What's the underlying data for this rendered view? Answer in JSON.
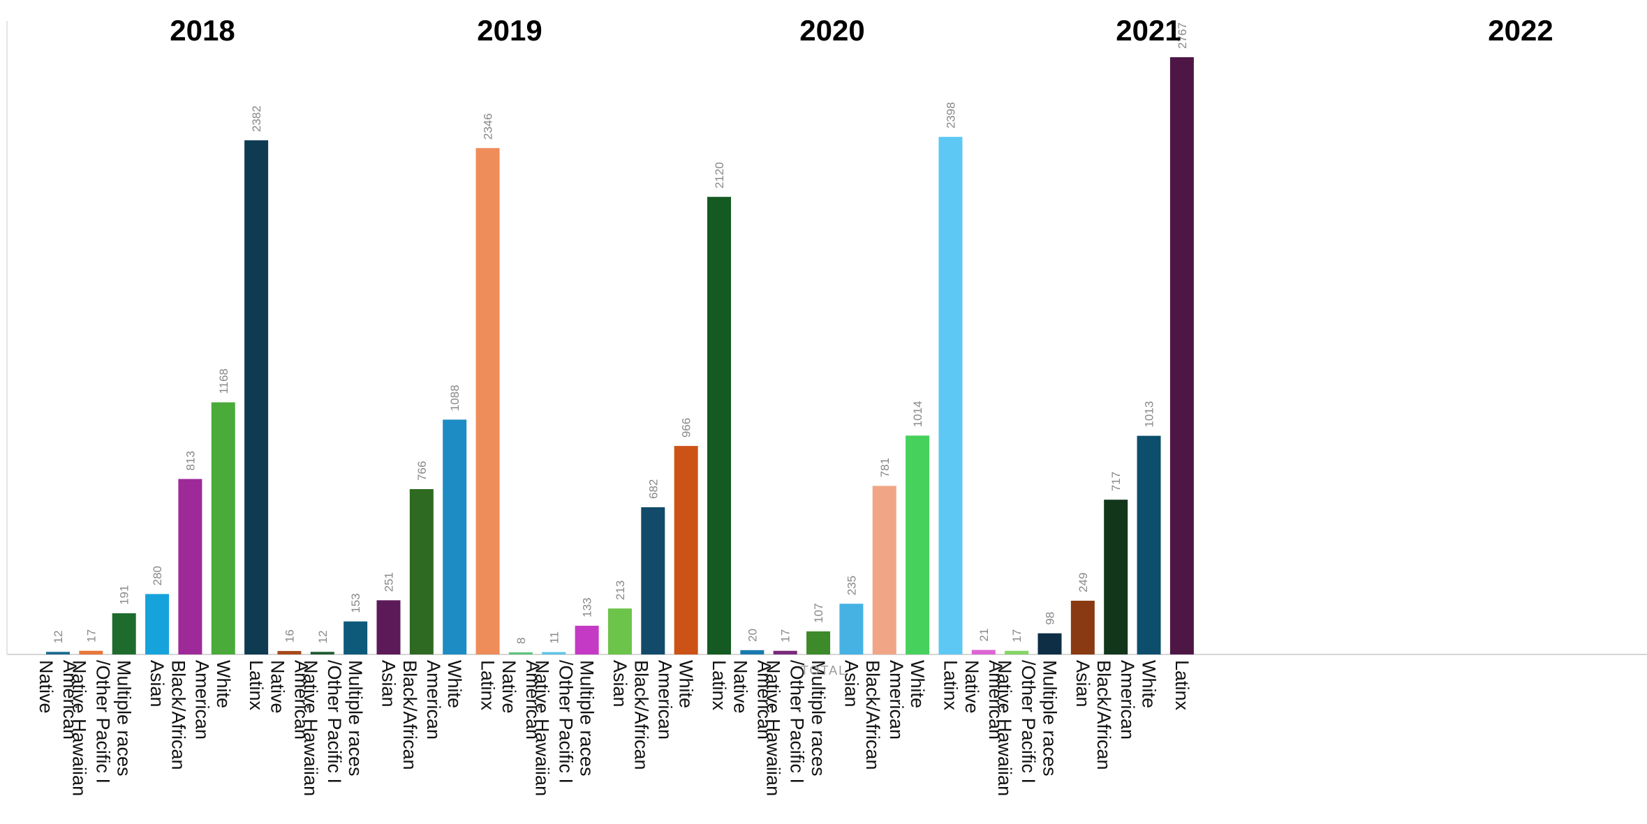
{
  "chart_data": {
    "type": "bar",
    "groups": [
      {
        "year": "2018",
        "bars": [
          {
            "label": [
              "Native",
              "American"
            ],
            "value": 12,
            "color": "#1b6b8f"
          },
          {
            "label": [
              "Native Hawaiian",
              "/Other Pacific I"
            ],
            "value": 17,
            "color": "#e8763a"
          },
          {
            "label": [
              "Multiple races"
            ],
            "value": 191,
            "color": "#1e6b2e"
          },
          {
            "label": [
              "Asian"
            ],
            "value": 280,
            "color": "#16a3dc"
          },
          {
            "label": [
              "Black/African",
              "American"
            ],
            "value": 813,
            "color": "#9e2a9a"
          },
          {
            "label": [
              "White"
            ],
            "value": 1168,
            "color": "#4aaa3a"
          },
          {
            "label": [
              "Latinx"
            ],
            "value": 2382,
            "color": "#0e3a52"
          }
        ]
      },
      {
        "year": "2019",
        "bars": [
          {
            "label": [
              "Native",
              "American"
            ],
            "value": 16,
            "color": "#a64a1a"
          },
          {
            "label": [
              "Native Hawaiian",
              "/Other Pacific I"
            ],
            "value": 12,
            "color": "#1e5a2e"
          },
          {
            "label": [
              "Multiple races"
            ],
            "value": 153,
            "color": "#0e5a7a"
          },
          {
            "label": [
              "Asian"
            ],
            "value": 251,
            "color": "#5c1a58"
          },
          {
            "label": [
              "Black/African",
              "American"
            ],
            "value": 766,
            "color": "#2e6a22"
          },
          {
            "label": [
              "White"
            ],
            "value": 1088,
            "color": "#1e8cc4"
          },
          {
            "label": [
              "Latinx"
            ],
            "value": 2346,
            "color": "#ee8c5a"
          }
        ]
      },
      {
        "year": "2020",
        "bars": [
          {
            "label": [
              "Native",
              "American"
            ],
            "value": 8,
            "color": "#5cc47a"
          },
          {
            "label": [
              "Native Hawaiian",
              "/Other Pacific I"
            ],
            "value": 11,
            "color": "#5ec4ea"
          },
          {
            "label": [
              "Multiple races"
            ],
            "value": 133,
            "color": "#c43ac4"
          },
          {
            "label": [
              "Asian"
            ],
            "value": 213,
            "color": "#6cc44a"
          },
          {
            "label": [
              "Black/African",
              "American"
            ],
            "value": 682,
            "color": "#124a6a"
          },
          {
            "label": [
              "White"
            ],
            "value": 966,
            "color": "#cc5216"
          },
          {
            "label": [
              "Latinx"
            ],
            "value": 2120,
            "color": "#145a22"
          }
        ]
      },
      {
        "year": "2021",
        "bars": [
          {
            "label": [
              "Native",
              "American"
            ],
            "value": 20,
            "color": "#1a7ab0"
          },
          {
            "label": [
              "Native Hawaiian",
              "/Other Pacific I"
            ],
            "value": 17,
            "color": "#7a2a7a"
          },
          {
            "label": [
              "Multiple races"
            ],
            "value": 107,
            "color": "#3c8a2a"
          },
          {
            "label": [
              "Asian"
            ],
            "value": 235,
            "color": "#46b2e4"
          },
          {
            "label": [
              "Black/African",
              "American"
            ],
            "value": 781,
            "color": "#f0a686"
          },
          {
            "label": [
              "White"
            ],
            "value": 1014,
            "color": "#46d05c"
          },
          {
            "label": [
              "Latinx"
            ],
            "value": 2398,
            "color": "#5ec8f4"
          }
        ]
      },
      {
        "year": "2022",
        "bars": [
          {
            "label": [
              "Native",
              "American"
            ],
            "value": 21,
            "color": "#dc66d4"
          },
          {
            "label": [
              "Native Hawaiian",
              "/Other Pacific I"
            ],
            "value": 17,
            "color": "#86d466"
          },
          {
            "label": [
              "Multiple races"
            ],
            "value": 98,
            "color": "#0e2e46"
          },
          {
            "label": [
              "Asian"
            ],
            "value": 249,
            "color": "#8a3a12"
          },
          {
            "label": [
              "Black/African",
              "American"
            ],
            "value": 717,
            "color": "#12361a"
          },
          {
            "label": [
              "White"
            ],
            "value": 1013,
            "color": "#0c4e6c"
          },
          {
            "label": [
              "Latinx"
            ],
            "value": 2767,
            "color": "#4e1644"
          }
        ]
      }
    ],
    "center_label": "TOTAL",
    "ylim": [
      0,
      2767
    ],
    "grid": false
  }
}
